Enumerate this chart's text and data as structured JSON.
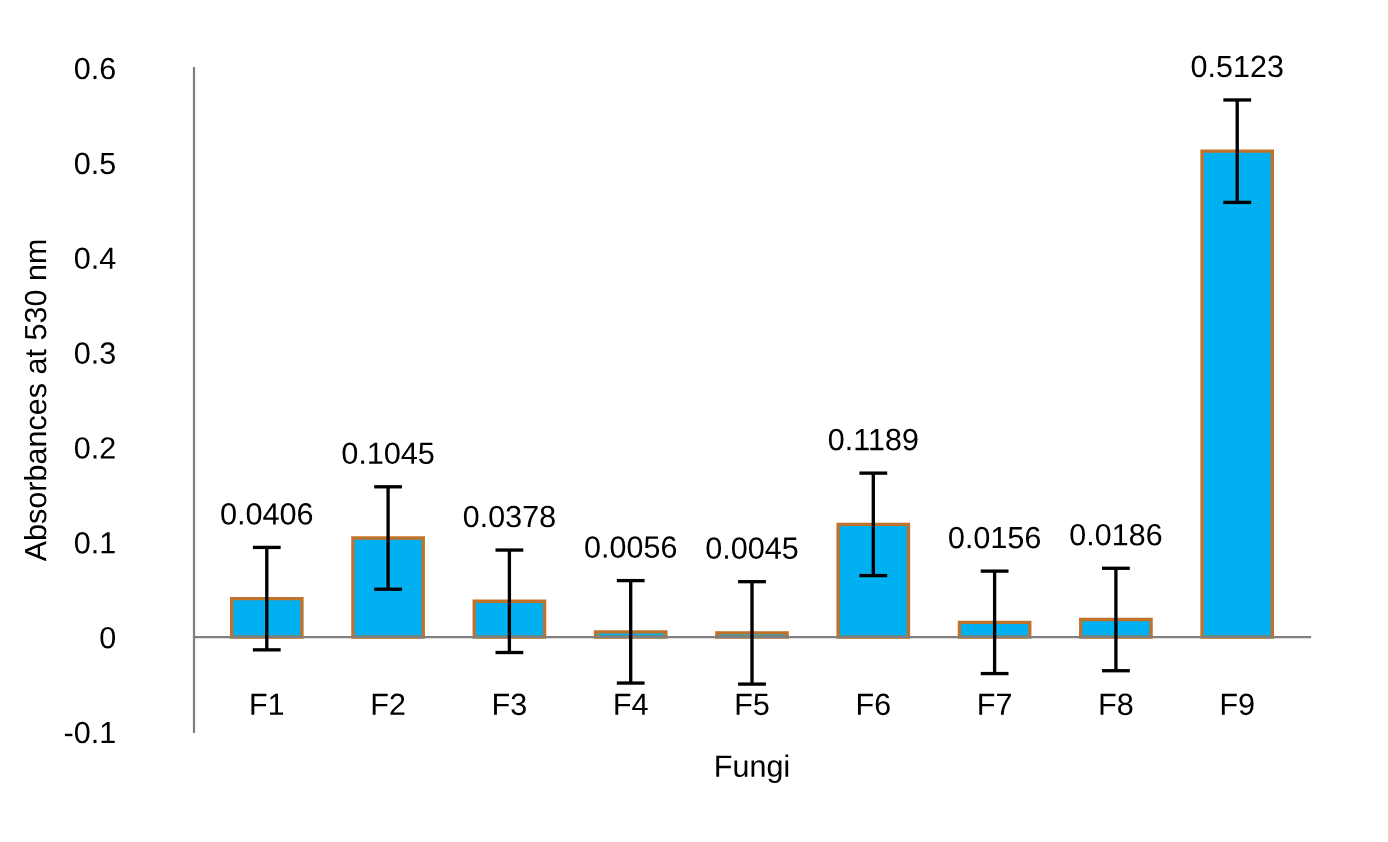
{
  "chart_data": {
    "type": "bar",
    "xlabel": "Fungi",
    "ylabel": "Absorbances at 530 nm",
    "categories": [
      "F1",
      "F2",
      "F3",
      "F4",
      "F5",
      "F6",
      "F7",
      "F8",
      "F9"
    ],
    "values": [
      0.0406,
      0.1045,
      0.0378,
      0.0056,
      0.0045,
      0.1189,
      0.0156,
      0.0186,
      0.5123
    ],
    "errors": [
      0.054,
      0.054,
      0.054,
      0.054,
      0.054,
      0.054,
      0.054,
      0.054,
      0.054
    ],
    "color": "#00b0f0",
    "data_labels": true,
    "grid": false,
    "legend": false,
    "ylim": [
      -0.1,
      0.6
    ],
    "yticks": [
      -0.1,
      0,
      0.1,
      0.2,
      0.3,
      0.4,
      0.5,
      0.6
    ]
  }
}
